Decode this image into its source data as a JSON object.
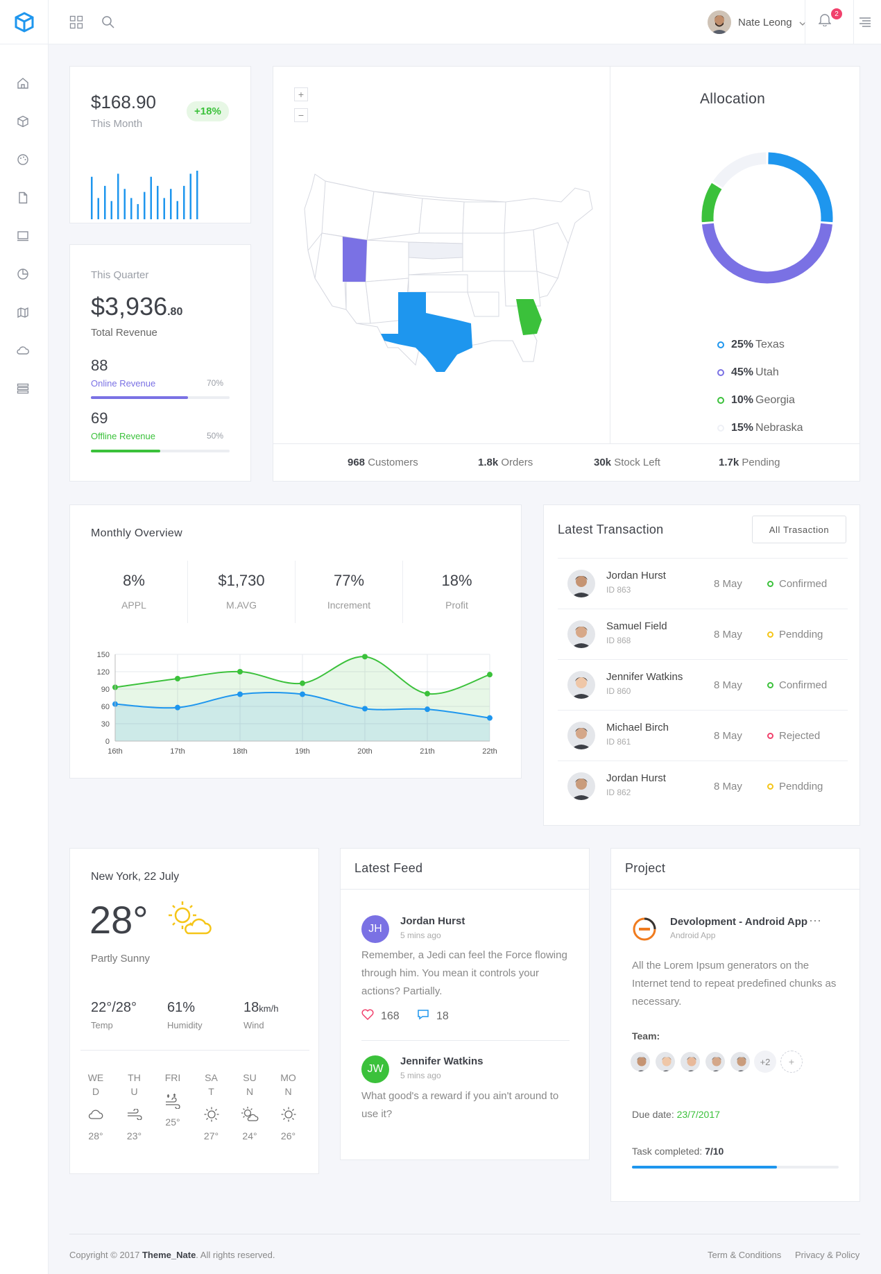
{
  "topbar": {
    "user_name": "Nate Leong",
    "notification_count": "2"
  },
  "revenue_card": {
    "amount": "$168.90",
    "period": "This Month",
    "change": "+18%",
    "sparkline": [
      70,
      35,
      55,
      30,
      75,
      50,
      35,
      25,
      45,
      70,
      55,
      35,
      50,
      30,
      55,
      75,
      80
    ],
    "accent": "#1e96ee"
  },
  "quarter_card": {
    "label": "This Quarter",
    "amount_main": "$3,936",
    "amount_cents": ".80",
    "amount_label": "Total Revenue",
    "online": {
      "value": "88",
      "label": "Online Revenue",
      "pct_text": "70%",
      "pct": 0.7,
      "color": "#7a71e4"
    },
    "offline": {
      "value": "69",
      "label": "Offline Revenue",
      "pct_text": "50%",
      "pct": 0.5,
      "color": "#3bc13b"
    }
  },
  "map_card": {
    "zoom_in": "+",
    "zoom_out": "−",
    "allocation_title": "Allocation",
    "legend": [
      {
        "pct": "25%",
        "name": "Texas",
        "color": "#1e96ee"
      },
      {
        "pct": "45%",
        "name": "Utah",
        "color": "#7a71e4"
      },
      {
        "pct": "10%",
        "name": "Georgia",
        "color": "#3bc13b"
      },
      {
        "pct": "15%",
        "name": "Nebraska",
        "color": "#eef0f6"
      }
    ],
    "donut": [
      {
        "name": "Texas",
        "value": 25,
        "color": "#1e96ee"
      },
      {
        "name": "Utah",
        "value": 45,
        "color": "#7a71e4"
      },
      {
        "name": "Georgia",
        "value": 10,
        "color": "#3bc13b"
      },
      {
        "name": "Nebraska",
        "value": 15,
        "color": "#f1f3f8"
      }
    ],
    "stats": [
      {
        "value": "968",
        "label": "Customers"
      },
      {
        "value": "1.8k",
        "label": "Orders"
      },
      {
        "value": "30k",
        "label": "Stock Left"
      },
      {
        "value": "1.7k",
        "label": "Pending"
      }
    ]
  },
  "monthly": {
    "title": "Monthly Overview",
    "kpis": [
      {
        "value": "8%",
        "label": "APPL"
      },
      {
        "value": "$1,730",
        "label": "M.AVG"
      },
      {
        "value": "77%",
        "label": "Increment"
      },
      {
        "value": "18%",
        "label": "Profit"
      }
    ]
  },
  "chart_data": {
    "type": "area",
    "categories": [
      "16th",
      "17th",
      "18th",
      "19th",
      "20th",
      "21th",
      "22th"
    ],
    "series": [
      {
        "values": [
          93,
          108,
          120,
          100,
          146,
          82,
          115
        ],
        "color": "#3bc13b"
      },
      {
        "values": [
          64,
          58,
          81,
          81,
          56,
          55,
          40
        ],
        "color": "#1e96ee"
      }
    ],
    "ylim": [
      0,
      150
    ],
    "yticks": [
      0,
      30,
      60,
      90,
      120,
      150
    ],
    "grid": true
  },
  "transactions": {
    "title": "Latest Transaction",
    "button": "All Trasaction",
    "rows": [
      {
        "name": "Jordan Hurst",
        "id": "ID 863",
        "date": "8 May",
        "status": "Confirmed",
        "color": "#3bc13b"
      },
      {
        "name": "Samuel Field",
        "id": "ID 868",
        "date": "8 May",
        "status": "Pendding",
        "color": "#f5c518"
      },
      {
        "name": "Jennifer Watkins",
        "id": "ID 860",
        "date": "8 May",
        "status": "Confirmed",
        "color": "#3bc13b"
      },
      {
        "name": "Michael Birch",
        "id": "ID 861",
        "date": "8 May",
        "status": "Rejected",
        "color": "#f1416c"
      },
      {
        "name": "Jordan Hurst",
        "id": "ID 862",
        "date": "8 May",
        "status": "Pendding",
        "color": "#f5c518"
      }
    ]
  },
  "weather": {
    "location": "New York, 22 July",
    "temp": "28°",
    "condition": "Partly Sunny",
    "details": [
      {
        "value": "22°/28°",
        "unit": "",
        "label": "Temp"
      },
      {
        "value": "61%",
        "unit": "",
        "label": "Humidity"
      },
      {
        "value": "18",
        "unit": "km/h",
        "label": "Wind"
      }
    ],
    "days": [
      {
        "l1": "WE",
        "l2": "D",
        "temp": "28°",
        "icon": "cloud-icon"
      },
      {
        "l1": "TH",
        "l2": "U",
        "temp": "23°",
        "icon": "wind-icon"
      },
      {
        "l1": "FRI",
        "l2": "",
        "temp": "25°",
        "icon": "snow-wind-icon"
      },
      {
        "l1": "SA",
        "l2": "T",
        "temp": "27°",
        "icon": "sun-icon"
      },
      {
        "l1": "SU",
        "l2": "N",
        "temp": "24°",
        "icon": "sun-cloud-icon"
      },
      {
        "l1": "MO",
        "l2": "N",
        "temp": "26°",
        "icon": "sun-icon"
      }
    ]
  },
  "feed": {
    "title": "Latest Feed",
    "posts": [
      {
        "initials": "JH",
        "name": "Jordan Hurst",
        "time": "5 mins ago",
        "text": "Remember, a Jedi can feel the Force flowing through him. You mean it controls your actions? Partially.",
        "likes": "168",
        "comments": "18",
        "color": "#7a71e4"
      },
      {
        "initials": "JW",
        "name": "Jennifer Watkins",
        "time": "5 mins ago",
        "text": "What good's a reward if you ain't around to use it?",
        "color": "#3bc13b"
      }
    ]
  },
  "project": {
    "title": "Project",
    "name": "Devolopment - Android App",
    "sub": "Android App",
    "description": "All the Lorem Ipsum generators on the Internet tend to repeat predefined chunks as necessary.",
    "team_label": "Team:",
    "team_more": "+2",
    "add": "+",
    "due_label": "Due date:",
    "due_date": "23/7/2017",
    "task_label": "Task completed:",
    "task_value": "7/10",
    "task_pct": 0.7
  },
  "footer": {
    "copyright_pre": "Copyright © 2017 ",
    "brand": "Theme_Nate",
    "copyright_post": ". All rights reserved.",
    "terms": "Term & Conditions",
    "privacy": "Privacy & Policy"
  }
}
